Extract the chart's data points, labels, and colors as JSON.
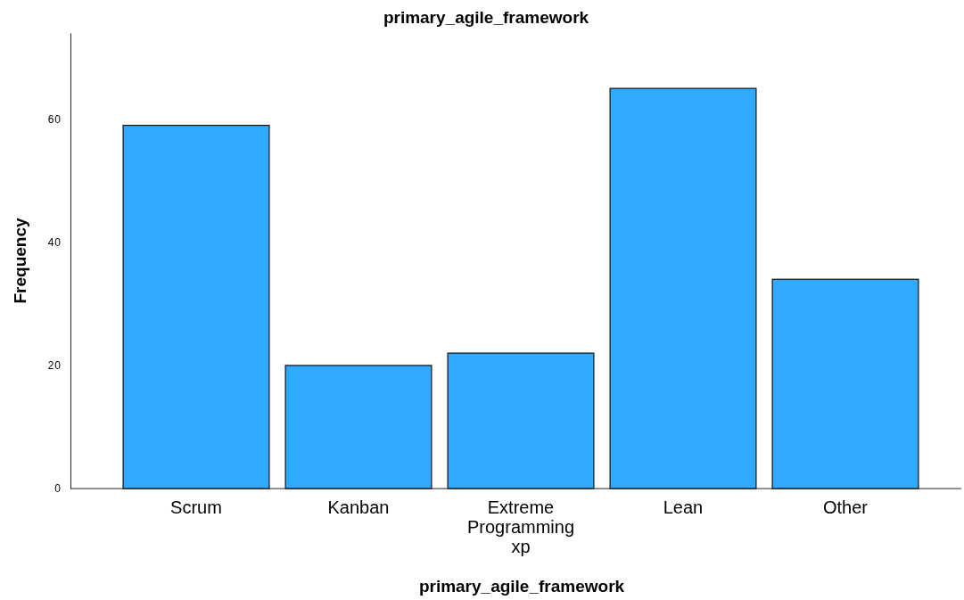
{
  "chart_data": {
    "type": "bar",
    "title": "primary_agile_framework",
    "xlabel": "primary_agile_framework",
    "ylabel": "Frequency",
    "categories": [
      "Scrum",
      "Kanban",
      "Extreme Programming xp",
      "Lean",
      "Other"
    ],
    "values": [
      59,
      20,
      22,
      65,
      34
    ],
    "color": "#2eaaff",
    "ylim": [
      0,
      74
    ],
    "yticks": [
      0,
      20,
      40,
      60
    ]
  }
}
